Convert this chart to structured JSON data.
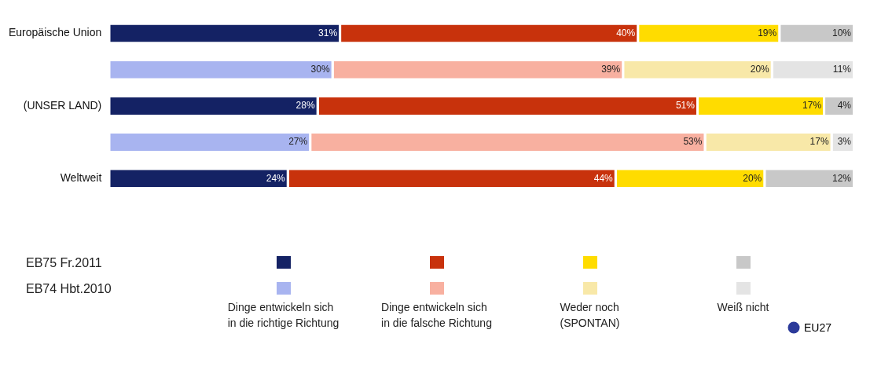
{
  "chart_data": {
    "type": "bar",
    "orientation": "horizontal",
    "stacked": true,
    "categories": [
      "Europäische Union",
      null,
      "(UNSER LAND)",
      null,
      "Weltweit",
      null
    ],
    "series": [
      {
        "name": "Dinge entwickeln sich\nin die richtige Richtung",
        "colors": [
          "#142264",
          "#a8b4f0",
          "#142264",
          "#a8b4f0",
          "#142264",
          "#a8b4f0"
        ],
        "values": [
          31,
          30,
          28,
          27,
          24,
          null
        ],
        "value_labels": [
          "31%",
          "30%",
          "28%",
          "27%",
          "24%",
          null
        ]
      },
      {
        "name": "Dinge entwickeln sich\nin die falsche Richtung",
        "colors": [
          "#c8320c",
          "#f8b0a0",
          "#c8320c",
          "#f8b0a0",
          "#c8320c",
          "#f8b0a0"
        ],
        "values": [
          40,
          39,
          51,
          53,
          44,
          null
        ],
        "value_labels": [
          "40%",
          "39%",
          "51%",
          "53%",
          "44%",
          null
        ]
      },
      {
        "name": "Weder noch\n(SPONTAN)",
        "colors": [
          "#ffdc00",
          "#f8e8a8",
          "#ffdc00",
          "#f8e8a8",
          "#ffdc00",
          "#f8e8a8"
        ],
        "values": [
          19,
          20,
          17,
          17,
          20,
          null
        ],
        "value_labels": [
          "19%",
          "20%",
          "17%",
          "17%",
          "20%",
          null
        ]
      },
      {
        "name": "Weiß nicht",
        "colors": [
          "#c8c8c8",
          "#e4e4e4",
          "#c8c8c8",
          "#e4e4e4",
          "#c8c8c8",
          "#e4e4e4"
        ],
        "values": [
          10,
          11,
          4,
          3,
          12,
          null
        ],
        "value_labels": [
          "10%",
          "11%",
          "4%",
          "3%",
          "12%",
          null
        ]
      }
    ],
    "legend": "bottom",
    "grid": false,
    "annotations": [
      "EB75 Fr.2011",
      "EB74 Hbt.2010",
      "EU27"
    ]
  }
}
